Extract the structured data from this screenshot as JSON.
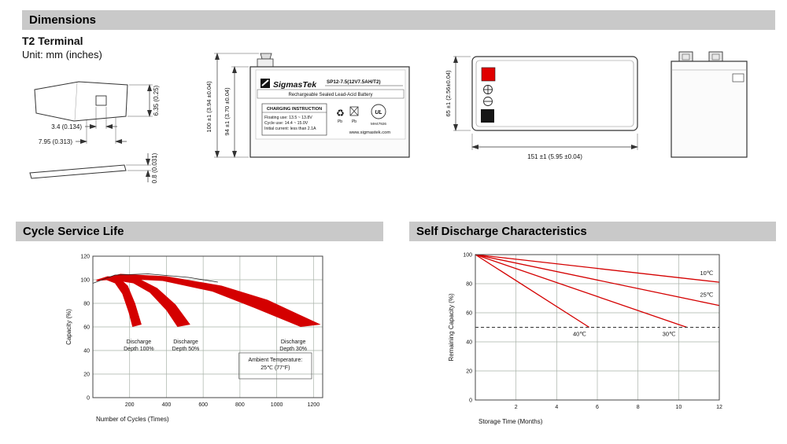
{
  "sections": {
    "dimensions": {
      "title": "Dimensions",
      "subtitle": "T2 Terminal",
      "unit": "Unit: mm (inches)"
    },
    "cycle_life": {
      "title": "Cycle Service Life"
    },
    "self_discharge": {
      "title": "Self Discharge Characteristics"
    }
  },
  "terminal_drawing": {
    "hole_width": "3.4 (0.134)",
    "tab_width": "7.95 (0.313)",
    "height": "6.35 (0.25)",
    "thickness": "0.8 (0.031)"
  },
  "front_view": {
    "dim_outer": "100 ±1 (3.94 ±0.04)",
    "dim_inner": "94 ±1 (3.70 ±0.04)",
    "label": {
      "brand": "SigmasTek",
      "model": "SP12-7.5(12V7.5AH/T2)",
      "battery_type": "Rechargeable Sealed Lead-Acid Battery",
      "charging_title": "CHARGING INSTRUCTION",
      "charging_lines": [
        "Floating use: 13.5 ~ 13.8V",
        "Cycle use: 14.4 ~ 15.0V",
        "Initial current: less than 2.1A"
      ],
      "pb": "Pb",
      "ul": "UL",
      "cert": "MH47926",
      "recycle_icon": "♻",
      "website": "www.sigmastek.com"
    }
  },
  "top_view": {
    "dim_depth": "65 ±1 (2.56±0.04)",
    "dim_length": "151 ±1 (5.95 ±0.04)"
  },
  "colors": {
    "accent_red": "#d40000",
    "header_gray": "#c9c9c9"
  },
  "chart_data": [
    {
      "id": "cycle",
      "type": "area",
      "title": "Cycle Service Life",
      "xlabel": "Number of Cycles (Times)",
      "ylabel": "Capacity (%)",
      "xlim": [
        0,
        1250
      ],
      "ylim": [
        0,
        120
      ],
      "xticks": [
        200,
        400,
        600,
        800,
        1000,
        1200
      ],
      "yticks": [
        0,
        20,
        40,
        60,
        80,
        100,
        120
      ],
      "grid": true,
      "legend": "none",
      "envelope": [
        [
          0,
          97
        ],
        [
          120,
          104
        ],
        [
          300,
          105
        ],
        [
          520,
          102
        ],
        [
          680,
          98
        ]
      ],
      "bands": [
        {
          "name": "Discharge Depth 100%",
          "polygon": [
            [
              20,
              100
            ],
            [
              80,
              103
            ],
            [
              140,
              102
            ],
            [
              190,
              95
            ],
            [
              230,
              80
            ],
            [
              265,
              62
            ],
            [
              215,
              60
            ],
            [
              195,
              72
            ],
            [
              160,
              88
            ],
            [
              120,
              97
            ],
            [
              70,
              100
            ],
            [
              20,
              99
            ]
          ]
        },
        {
          "name": "Discharge Depth 50%",
          "polygon": [
            [
              20,
              100
            ],
            [
              120,
              103
            ],
            [
              250,
              101
            ],
            [
              350,
              93
            ],
            [
              450,
              79
            ],
            [
              530,
              62
            ],
            [
              460,
              60
            ],
            [
              400,
              74
            ],
            [
              310,
              89
            ],
            [
              220,
              97
            ],
            [
              100,
              100
            ],
            [
              20,
              99
            ]
          ]
        },
        {
          "name": "Discharge Depth 30%",
          "polygon": [
            [
              20,
              100
            ],
            [
              150,
              105
            ],
            [
              400,
              103
            ],
            [
              700,
              95
            ],
            [
              950,
              83
            ],
            [
              1240,
              62
            ],
            [
              1130,
              60
            ],
            [
              880,
              76
            ],
            [
              650,
              90
            ],
            [
              380,
              99
            ],
            [
              130,
              101
            ],
            [
              20,
              99
            ]
          ]
        }
      ],
      "labels": [
        {
          "lines": [
            "Discharge",
            "Depth 100%"
          ],
          "x": 250,
          "y": 46
        },
        {
          "lines": [
            "Discharge",
            "Depth 50%"
          ],
          "x": 505,
          "y": 46
        },
        {
          "lines": [
            "Discharge",
            "Depth 30%"
          ],
          "x": 1090,
          "y": 46
        }
      ],
      "note": {
        "lines": [
          "Ambient Temperature:",
          "25℃ (77°F)"
        ],
        "x1": 795,
        "x2": 1190,
        "y_top": 38,
        "y_bottom": 16
      }
    },
    {
      "id": "sd",
      "type": "line",
      "title": "Self Discharge Characteristics",
      "xlabel": "Storage Time (Months)",
      "ylabel": "Remaining Capacity (%)",
      "xlim": [
        0,
        12
      ],
      "ylim": [
        0,
        100
      ],
      "xticks": [
        2,
        4,
        6,
        8,
        10,
        12
      ],
      "yticks": [
        0,
        20,
        40,
        60,
        80,
        100
      ],
      "grid": true,
      "series": [
        {
          "name": "10℃",
          "points": [
            [
              0,
              100
            ],
            [
              12,
              81
            ]
          ],
          "label": {
            "x": 11.05,
            "y": 86
          }
        },
        {
          "name": "25℃",
          "points": [
            [
              0,
              100
            ],
            [
              12,
              65
            ]
          ],
          "label": {
            "x": 11.05,
            "y": 71
          }
        },
        {
          "name": "30℃",
          "points": [
            [
              0,
              100
            ],
            [
              10.4,
              50
            ]
          ],
          "label": {
            "x": 9.2,
            "y": 44
          }
        },
        {
          "name": "40℃",
          "points": [
            [
              0,
              100
            ],
            [
              5.6,
              50
            ]
          ],
          "label": {
            "x": 4.8,
            "y": 44
          }
        }
      ],
      "hline": {
        "y": 50,
        "style": "dashed"
      }
    }
  ]
}
